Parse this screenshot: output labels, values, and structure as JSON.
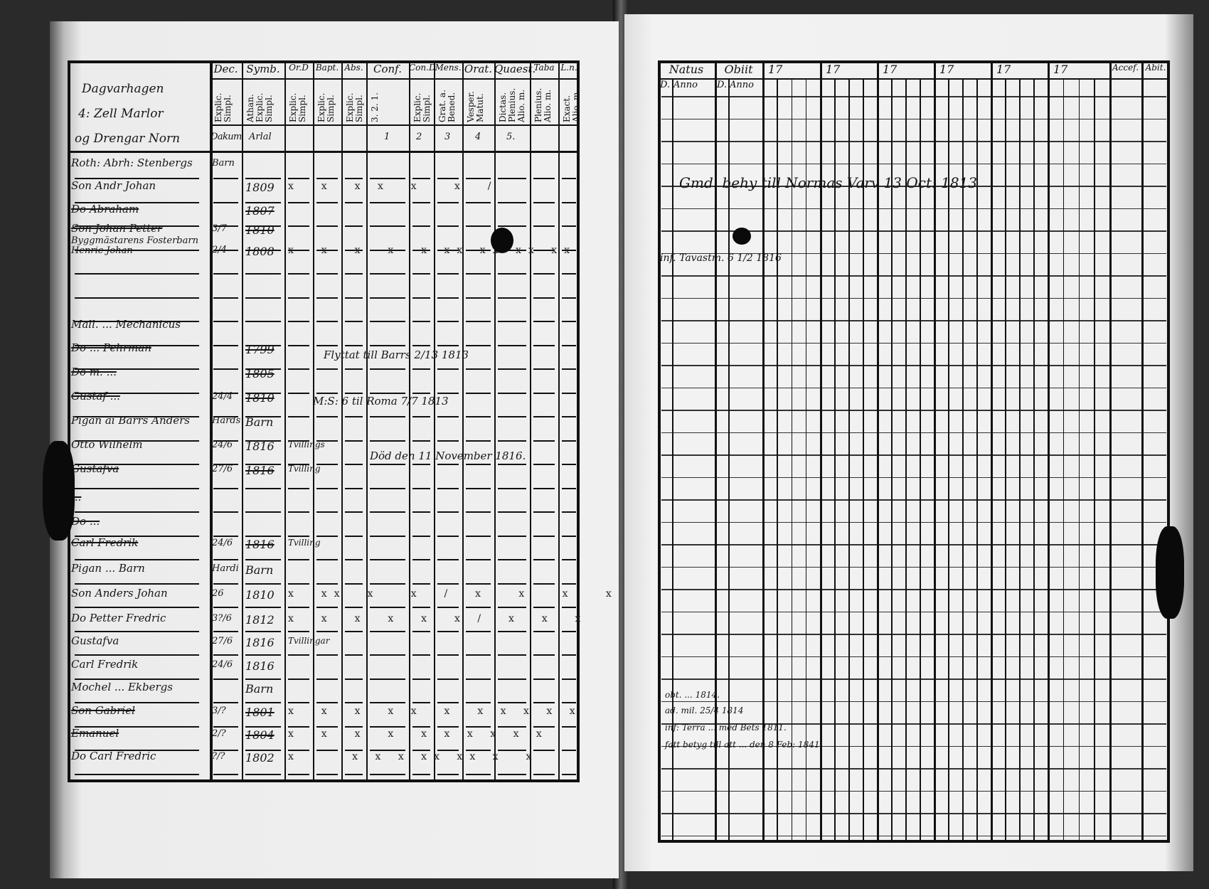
{
  "left_page": {
    "headers": [
      "Dec.",
      "Symb.",
      "Or.D",
      "Bapt.",
      "Abs.",
      "Conf.",
      "Con.D",
      "Mens.",
      "Orat.",
      "Quaest.",
      "Taba",
      "L.n."
    ],
    "subheaders": [
      "Explic. Simpl.",
      "Athan. Explic. Simpl.",
      "Explic. Simpl.",
      "Explic. Simpl.",
      "Explic. Simpl.",
      "3. 2. 1.",
      "Explic. Simpl.",
      "Grat. a. Bened.",
      "Vesper. Matut.",
      "Dictas. Plenius. Alio. m.",
      "Plenius. Alio. m.",
      "Exact. Alio. m."
    ],
    "title_cell": [
      "Dagvarhagen",
      "4: Zell Marlor",
      "og Drengar Norn"
    ],
    "title_row": {
      "dec": "Dakum",
      "symb": "Arlal",
      "conf": "1",
      "cond": "2",
      "mens": "3",
      "orat": "4",
      "quaest": "5."
    },
    "entries": [
      {
        "name": "Roth: Abrh: Stenbergs",
        "dec": "Barn",
        "symb": "",
        "marks": ""
      },
      {
        "name": "Son Andr Johan",
        "dec": "",
        "symb": "1809",
        "marks": "x  x  x x  x   x  /"
      },
      {
        "name": "Do Abraham",
        "dec": "",
        "symb": "1807",
        "marks": "",
        "struck": true
      },
      {
        "name": "Son Johan Petter",
        "dec": "3/7",
        "symb": "1810",
        "marks": "",
        "struck": true
      },
      {
        "name": "Byggmästarens Fosterbarn Henric Johan",
        "dec": "2/4",
        "symb": "1808",
        "marks": "x  x  x  x  x xx xx xx xx"
      },
      {
        "name": "Mall. ... Mechanicus",
        "dec": "",
        "symb": "",
        "marks": ""
      },
      {
        "name": "Do ... Pehrman",
        "dec": "",
        "symb": "1799",
        "marks": "",
        "struck": true
      },
      {
        "name": "Do m. ... ",
        "dec": "",
        "symb": "1805",
        "marks": "",
        "struck": true
      },
      {
        "name": "Gustaf ...",
        "dec": "24/4",
        "symb": "1810",
        "marks": "",
        "struck": true
      },
      {
        "name": "Pigan ai Barrs Anders",
        "dec": "Hards",
        "symb": "Barn",
        "marks": ""
      },
      {
        "name": "Otto Wilhelm",
        "dec": "24/6",
        "symb": "1816",
        "marks": "",
        "note": "Tvillings"
      },
      {
        "name": "Gustafva",
        "dec": "27/6",
        "symb": "1816",
        "marks": "",
        "note": "Tvilling",
        "struck": true
      },
      {
        "name": "... ",
        "dec": "",
        "symb": "",
        "marks": "",
        "struck": true
      },
      {
        "name": "Do ... ",
        "dec": "",
        "symb": "",
        "marks": "",
        "struck": true
      },
      {
        "name": "Carl Fredrik",
        "dec": "24/6",
        "symb": "1816",
        "marks": "",
        "note": "Tvilling",
        "struck": true
      },
      {
        "name": "Pigan ... Barn",
        "dec": "Hardi",
        "symb": "Barn",
        "marks": ""
      },
      {
        "name": "Son Anders Johan",
        "dec": "26",
        "symb": "1810",
        "marks": "x  xx  x   x  /  x   x   x   x"
      },
      {
        "name": "Do Petter Fredric",
        "dec": "3?/6",
        "symb": "1812",
        "marks": "x  x  x  x  x  x /  x  x  x"
      },
      {
        "name": "Gustafva",
        "dec": "27/6",
        "symb": "1816",
        "marks": "",
        "note": "Tvillingar"
      },
      {
        "name": "Carl Fredrik",
        "dec": "24/6",
        "symb": "1816",
        "marks": ""
      },
      {
        "name": "Mochel ... Ekbergs",
        "dec": "",
        "symb": "Barn",
        "marks": ""
      },
      {
        "name": "Son Gabriel",
        "dec": "3/?",
        "symb": "1801",
        "marks": "x  x  x  x x  x  x x x x x",
        "struck": true
      },
      {
        "name": "Emanuel",
        "dec": "2/?",
        "symb": "1804",
        "marks": "x  x  x  x  x x x x x x",
        "struck": true
      },
      {
        "name": "Do Carl Fredric",
        "dec": "?/?",
        "symb": "1802",
        "marks": "x     x x x xx xx x  x"
      }
    ],
    "notes": [
      "Flyttat till Barrs 2/13 1813",
      "M:S: 6 til Roma 7/7 1813",
      "Död den 11 November 1816."
    ]
  },
  "right_page": {
    "headers": [
      "Natus",
      "Obiit",
      "17",
      "17",
      "17",
      "17",
      "17",
      "17",
      "Accef.",
      "Abit."
    ],
    "subheaders": [
      "D.",
      "Anno",
      "D.",
      "Anno"
    ],
    "notes": [
      "Gmd. behy till Normas Varv 13 Oct: 1813",
      "inf. Tavastm. 6 1/2 1816",
      "obt. ... 1814.",
      "ad. mil. 25/4 1814",
      "inf: Terra ... med Bets 1811.",
      "fatt betyg till att ... den 8 Feb: 1841."
    ]
  }
}
